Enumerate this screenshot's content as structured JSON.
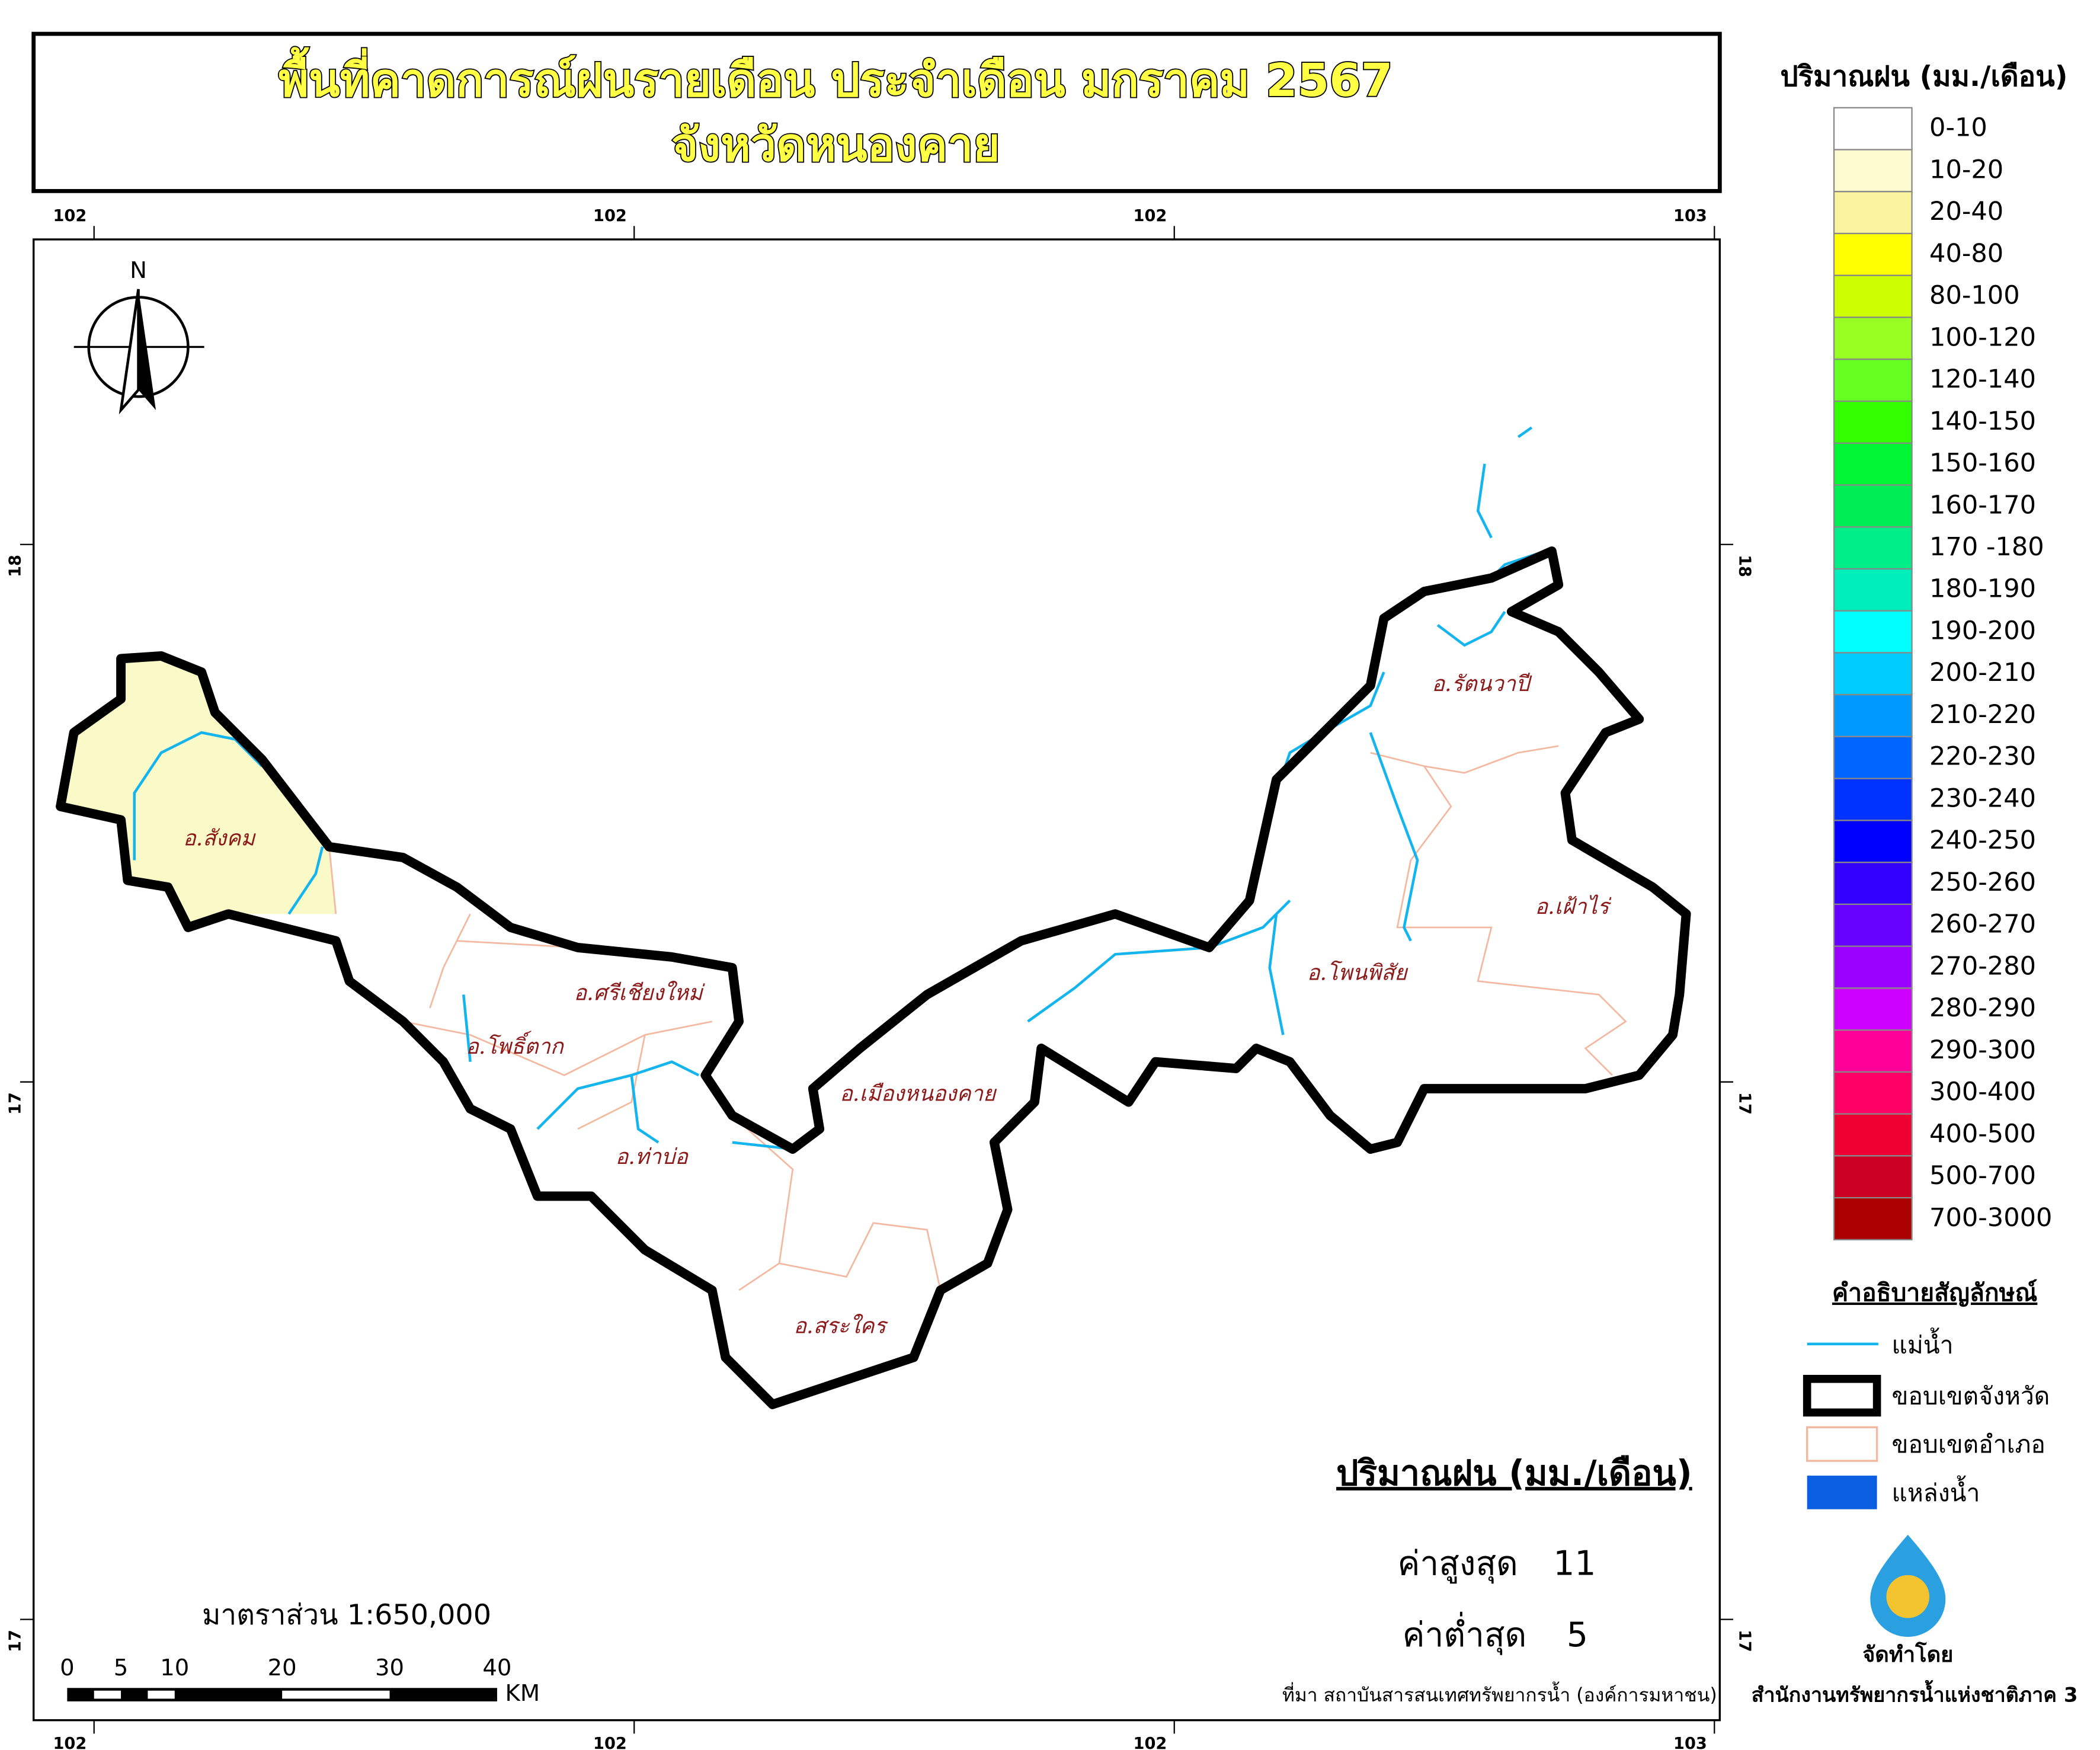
{
  "title": {
    "line1": "พื้นที่คาดการณ์ฝนรายเดือน ประจำเดือน มกราคม 2567",
    "line2": "จังหวัดหนองคาย"
  },
  "coordinates": {
    "top": [
      "102",
      "102",
      "102",
      "103"
    ],
    "bottom": [
      "102",
      "102",
      "102",
      "103"
    ],
    "left": [
      "18",
      "17",
      "17"
    ],
    "right": [
      "18",
      "17",
      "17"
    ]
  },
  "north_arrow": "N",
  "districts": [
    "อ.สังคม",
    "อ.ศรีเชียงใหม่",
    "อ.โพธิ์ตาก",
    "อ.ท่าบ่อ",
    "อ.เมืองหนองคาย",
    "อ.สระใคร",
    "อ.โพนพิสัย",
    "อ.เฝ้าไร่",
    "อ.รัตนวาปี"
  ],
  "rainfall_legend": {
    "title": "ปริมาณฝน (มม./เดือน)",
    "classes": [
      {
        "label": "0-10",
        "color": "#ffffff"
      },
      {
        "label": "10-20",
        "color": "#fdfbd0"
      },
      {
        "label": "20-40",
        "color": "#faf3a0"
      },
      {
        "label": "40-80",
        "color": "#ffff00"
      },
      {
        "label": "80-100",
        "color": "#ccff00"
      },
      {
        "label": "100-120",
        "color": "#99ff22"
      },
      {
        "label": "120-140",
        "color": "#66ff22"
      },
      {
        "label": "140-150",
        "color": "#33ff00"
      },
      {
        "label": "150-160",
        "color": "#00f533"
      },
      {
        "label": "160-170",
        "color": "#00ee55"
      },
      {
        "label": "170 -180",
        "color": "#00ee88"
      },
      {
        "label": "180-190",
        "color": "#00eebb"
      },
      {
        "label": "190-200",
        "color": "#00ffff"
      },
      {
        "label": "200-210",
        "color": "#00ccff"
      },
      {
        "label": "210-220",
        "color": "#0099ff"
      },
      {
        "label": "220-230",
        "color": "#0066ff"
      },
      {
        "label": "230-240",
        "color": "#0033ff"
      },
      {
        "label": "240-250",
        "color": "#0000ff"
      },
      {
        "label": "250-260",
        "color": "#3300ff"
      },
      {
        "label": "260-270",
        "color": "#6600ff"
      },
      {
        "label": "270-280",
        "color": "#9900ff"
      },
      {
        "label": "280-290",
        "color": "#cc00ff"
      },
      {
        "label": "290-300",
        "color": "#ff0099"
      },
      {
        "label": "300-400",
        "color": "#ff0066"
      },
      {
        "label": "400-500",
        "color": "#ee0033"
      },
      {
        "label": "500-700",
        "color": "#cc0022"
      },
      {
        "label": "700-3000",
        "color": "#aa0000"
      }
    ]
  },
  "symbol_legend": {
    "title": "คำอธิบายสัญลักษณ์",
    "items": [
      "แม่น้ำ",
      "ขอบเขตจังหวัด",
      "ขอบเขตอำเภอ",
      "แหล่งน้ำ"
    ]
  },
  "stats": {
    "title": "ปริมาณฝน (มม./เดือน)",
    "max_label": "ค่าสูงสุด",
    "max": 11,
    "min_label": "ค่าต่ำสุด",
    "min": 5
  },
  "scale": {
    "label": "มาตราส่วน  1:650,000",
    "ticks": [
      "0",
      "5",
      "10",
      "20",
      "30",
      "40"
    ],
    "unit": "KM"
  },
  "source": "ที่มา  สถาบันสารสนเทศทรัพยากรน้ำ (องค์การมหาชน)",
  "producer": {
    "label": "จัดทำโดย",
    "name": "สำนักงานทรัพยากรน้ำแห่งชาติภาค 3"
  }
}
